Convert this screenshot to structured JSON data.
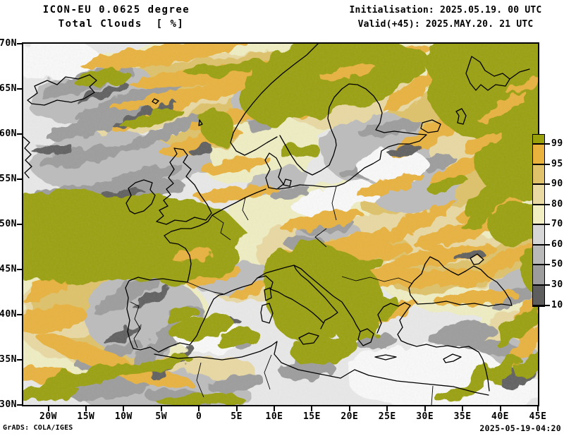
{
  "header": {
    "model_line": "ICON-EU 0.0625 degree",
    "product_line": "Total Clouds  [ %]",
    "init_line": "Initialisation: 2025.05.19. 00 UTC",
    "valid_line": "Valid(+45): 2025.MAY.20. 21 UTC"
  },
  "axes": {
    "lat_ticks": [
      "70N",
      "65N",
      "60N",
      "55N",
      "50N",
      "45N",
      "40N",
      "35N",
      "30N"
    ],
    "lon_ticks": [
      "20W",
      "15W",
      "10W",
      "5W",
      "0",
      "5E",
      "10E",
      "15E",
      "20E",
      "25E",
      "30E",
      "35E",
      "40E",
      "45E"
    ]
  },
  "legend": {
    "values": [
      "99.5",
      "95",
      "90",
      "80",
      "70",
      "60",
      "50",
      "30",
      "10"
    ],
    "segment_colors": [
      "#99a00a",
      "#e9b23c",
      "#dfc269",
      "#e9d9a2",
      "#f0eec2",
      "#d6d6d6",
      "#b9b9b9",
      "#9c9c9c",
      "#5e5e5e"
    ]
  },
  "palette": {
    "olive": "#99a00a",
    "orange": "#e9b23c",
    "tan": "#dfc269",
    "sand": "#e9d9a2",
    "cream": "#f0eec2",
    "gray_60": "#bcbcbc",
    "gray_50": "#9c9c9c",
    "gray_30": "#5e5e5e",
    "clear": "#e9e9e9",
    "white_patch": "#fafafa",
    "coast": "#000000"
  },
  "footer": {
    "credit": "GrADS: COLA/IGES",
    "generated": "2025-05-19-04:20"
  }
}
